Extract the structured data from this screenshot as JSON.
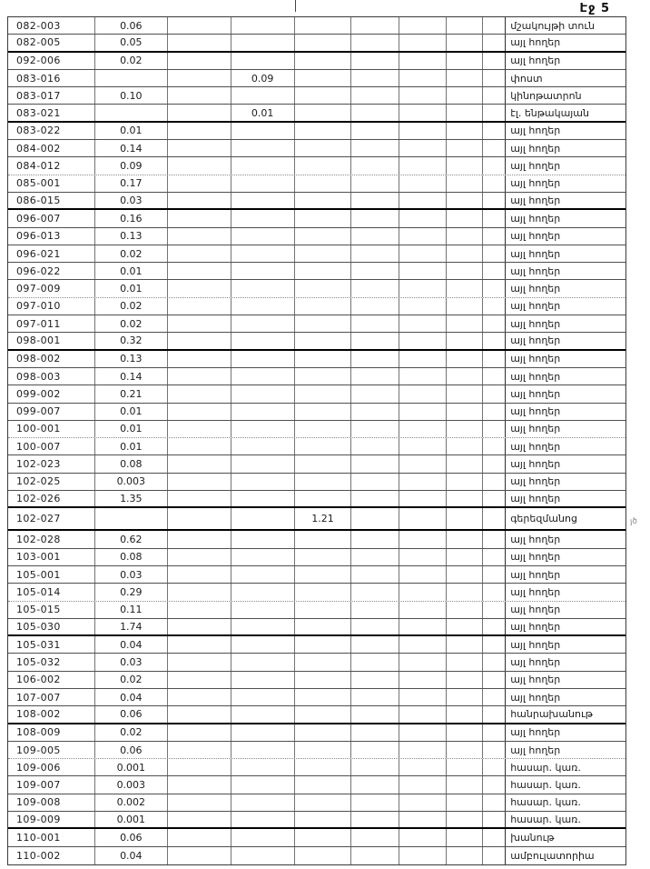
{
  "page": {
    "header": "Էջ 5",
    "stray_mark": "յծ",
    "ink_color": "#1c1c1c",
    "paper_color": "#ffffff"
  },
  "table": {
    "columns": [
      "code",
      "area",
      "",
      "area_alt1",
      "area_alt2",
      "",
      "",
      "",
      "",
      "land_use"
    ],
    "rows": [
      {
        "code": "082-003",
        "value": "0.06",
        "value_col": 2,
        "label": "մշակույթի տուն"
      },
      {
        "code": "082-005",
        "value": "0.05",
        "value_col": 2,
        "label": "այլ հողեր"
      },
      {
        "code": "092-006",
        "value": "0.02",
        "value_col": 2,
        "label": "այլ հողեր"
      },
      {
        "code": "083-016",
        "value": "0.09",
        "value_col": 4,
        "label": "փոստ"
      },
      {
        "code": "083-017",
        "value": "0.10",
        "value_col": 2,
        "label": "կինոթատրոն"
      },
      {
        "code": "083-021",
        "value": "0.01",
        "value_col": 4,
        "label": "էլ. ենթակայան"
      },
      {
        "code": "083-022",
        "value": "0.01",
        "value_col": 2,
        "label": "այլ հողեր"
      },
      {
        "code": "084-002",
        "value": "0.14",
        "value_col": 2,
        "label": "այլ հողեր"
      },
      {
        "code": "084-012",
        "value": "0.09",
        "value_col": 2,
        "label": "այլ հողեր"
      },
      {
        "code": "085-001",
        "value": "0.17",
        "value_col": 2,
        "label": "այլ հողեր"
      },
      {
        "code": "086-015",
        "value": "0.03",
        "value_col": 2,
        "label": "այլ հողեր"
      },
      {
        "code": "096-007",
        "value": "0.16",
        "value_col": 2,
        "label": "այլ հողեր"
      },
      {
        "code": "096-013",
        "value": "0.13",
        "value_col": 2,
        "label": "այլ հողեր"
      },
      {
        "code": "096-021",
        "value": "0.02",
        "value_col": 2,
        "label": "այլ հողեր"
      },
      {
        "code": "096-022",
        "value": "0.01",
        "value_col": 2,
        "label": "այլ հողեր"
      },
      {
        "code": "097-009",
        "value": "0.01",
        "value_col": 2,
        "label": "այլ հողեր"
      },
      {
        "code": "097-010",
        "value": "0.02",
        "value_col": 2,
        "label": "այլ հողեր"
      },
      {
        "code": "097-011",
        "value": "0.02",
        "value_col": 2,
        "label": "այլ հողեր"
      },
      {
        "code": "098-001",
        "value": "0.32",
        "value_col": 2,
        "label": "այլ հողեր"
      },
      {
        "code": "098-002",
        "value": "0.13",
        "value_col": 2,
        "label": "այլ հողեր"
      },
      {
        "code": "098-003",
        "value": "0.14",
        "value_col": 2,
        "label": "այլ հողեր"
      },
      {
        "code": "099-002",
        "value": "0.21",
        "value_col": 2,
        "label": "այլ հողեր"
      },
      {
        "code": "099-007",
        "value": "0.01",
        "value_col": 2,
        "label": "այլ հողեր"
      },
      {
        "code": "100-001",
        "value": "0.01",
        "value_col": 2,
        "label": "այլ հողեր"
      },
      {
        "code": "100-007",
        "value": "0.01",
        "value_col": 2,
        "label": "այլ հողեր"
      },
      {
        "code": "102-023",
        "value": "0.08",
        "value_col": 2,
        "label": "այլ հողեր"
      },
      {
        "code": "102-025",
        "value": "0.003",
        "value_col": 2,
        "label": "այլ հողեր"
      },
      {
        "code": "102-026",
        "value": "1.35",
        "value_col": 2,
        "label": "այլ հողեր"
      },
      {
        "code": "102-027",
        "value": "1.21",
        "value_col": 5,
        "label": "գերեզմանոց",
        "tall": true
      },
      {
        "code": "102-028",
        "value": "0.62",
        "value_col": 2,
        "label": "այլ հողեր"
      },
      {
        "code": "103-001",
        "value": "0.08",
        "value_col": 2,
        "label": "այլ հողեր"
      },
      {
        "code": "105-001",
        "value": "0.03",
        "value_col": 2,
        "label": "այլ հողեր"
      },
      {
        "code": "105-014",
        "value": "0.29",
        "value_col": 2,
        "label": "այլ հողեր"
      },
      {
        "code": "105-015",
        "value": "0.11",
        "value_col": 2,
        "label": "այլ հողեր"
      },
      {
        "code": "105-030",
        "value": "1.74",
        "value_col": 2,
        "label": "այլ հողեր"
      },
      {
        "code": "105-031",
        "value": "0.04",
        "value_col": 2,
        "label": "այլ հողեր"
      },
      {
        "code": "105-032",
        "value": "0.03",
        "value_col": 2,
        "label": "այլ հողեր"
      },
      {
        "code": "106-002",
        "value": "0.02",
        "value_col": 2,
        "label": "այլ հողեր"
      },
      {
        "code": "107-007",
        "value": "0.04",
        "value_col": 2,
        "label": "այլ հողեր"
      },
      {
        "code": "108-002",
        "value": "0.06",
        "value_col": 2,
        "label": "հանրախանութ"
      },
      {
        "code": "108-009",
        "value": "0.02",
        "value_col": 2,
        "label": "այլ հողեր"
      },
      {
        "code": "109-005",
        "value": "0.06",
        "value_col": 2,
        "label": "այլ հողեր"
      },
      {
        "code": "109-006",
        "value": "0.001",
        "value_col": 2,
        "label": "հասար. կառ."
      },
      {
        "code": "109-007",
        "value": "0.003",
        "value_col": 2,
        "label": "հասար. կառ."
      },
      {
        "code": "109-008",
        "value": "0.002",
        "value_col": 2,
        "label": "հասար. կառ."
      },
      {
        "code": "109-009",
        "value": "0.001",
        "value_col": 2,
        "label": "հասար. կառ."
      },
      {
        "code": "110-001",
        "value": "0.06",
        "value_col": 2,
        "label": "խանութ"
      },
      {
        "code": "110-002",
        "value": "0.04",
        "value_col": 2,
        "label": "ամբուլատորիա"
      }
    ]
  }
}
